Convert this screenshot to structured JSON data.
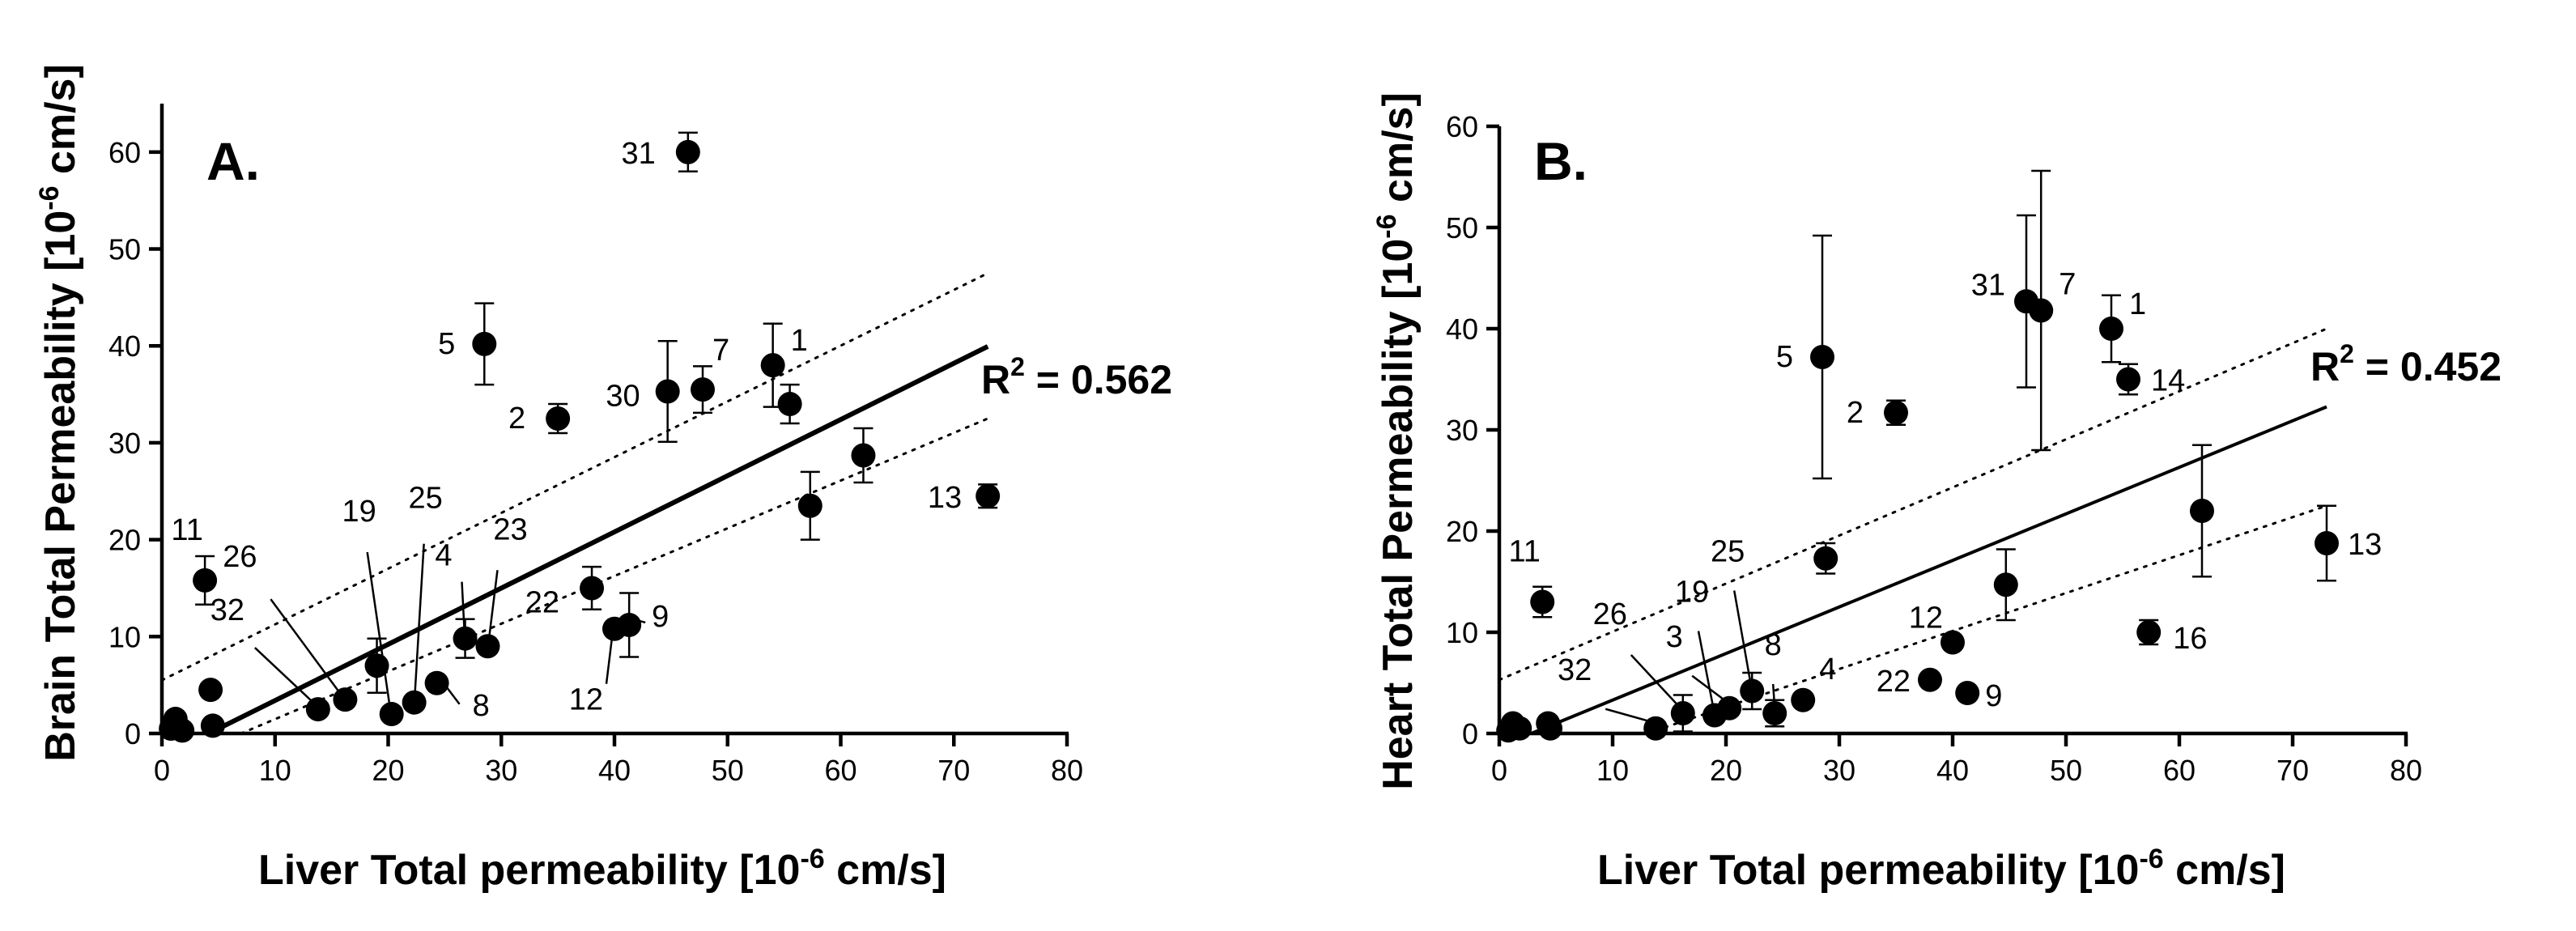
{
  "chart_data": [
    {
      "type": "scatter",
      "panel_label": "A.",
      "xlabel_main": "Liver Total permeability [10",
      "xlabel_exp": "-6",
      "xlabel_end": " cm/s]",
      "ylabel_main": "Brain Total  Permeability [10",
      "ylabel_exp": "-6",
      "ylabel_end": " cm/s]",
      "xlim": [
        0,
        80
      ],
      "ylim": [
        0,
        65
      ],
      "x_ticks": [
        "0",
        "10",
        "20",
        "30",
        "40",
        "50",
        "60",
        "70",
        "80"
      ],
      "y_ticks": [
        "0",
        "10",
        "20",
        "30",
        "40",
        "50",
        "60"
      ],
      "r2_prefix": "R",
      "r2_exp": "2",
      "r2_value": " = 0.562",
      "fit": {
        "slope": 0.58,
        "intercept": -2.4
      },
      "ci_upper": [
        [
          0,
          5.5
        ],
        [
          73,
          47.5
        ]
      ],
      "ci_lower": [
        [
          7,
          0
        ],
        [
          73,
          32.5
        ]
      ],
      "points": [
        {
          "x": 54.0,
          "y": 38.0,
          "err": 4.3,
          "label": "1"
        },
        {
          "x": 35.0,
          "y": 32.5,
          "err": 1.5,
          "label": "2"
        },
        {
          "x": 28.5,
          "y": 40.2,
          "err": 4.2,
          "label": "5"
        },
        {
          "x": 47.8,
          "y": 35.5,
          "err": 2.4,
          "label": "7"
        },
        {
          "x": 3.8,
          "y": 15.8,
          "err": 2.5,
          "label": "11"
        },
        {
          "x": 73.0,
          "y": 24.5,
          "err": 1.2,
          "label": "13"
        },
        {
          "x": 44.7,
          "y": 35.3,
          "err": 5.2,
          "label": "30"
        },
        {
          "x": 46.5,
          "y": 60.0,
          "err": 2.0,
          "label": "31"
        },
        {
          "x": 55.5,
          "y": 34.0,
          "err": 2.0,
          "label": ""
        },
        {
          "x": 62.0,
          "y": 28.7,
          "err": 2.8,
          "label": ""
        },
        {
          "x": 57.3,
          "y": 23.5,
          "err": 3.5,
          "label": ""
        },
        {
          "x": 38.0,
          "y": 15.0,
          "err": 2.2,
          "label": "22"
        },
        {
          "x": 41.3,
          "y": 11.2,
          "err": 3.3,
          "label": "9"
        },
        {
          "x": 40.0,
          "y": 10.8,
          "err": 0,
          "label": "12"
        },
        {
          "x": 19.0,
          "y": 7.0,
          "err": 2.8,
          "label": ""
        },
        {
          "x": 26.8,
          "y": 9.8,
          "err": 2.0,
          "label": "4"
        },
        {
          "x": 28.8,
          "y": 9.0,
          "err": 0,
          "label": "23"
        },
        {
          "x": 24.3,
          "y": 5.2,
          "err": 0,
          "label": "8"
        },
        {
          "x": 22.3,
          "y": 3.2,
          "err": 0,
          "label": "25"
        },
        {
          "x": 20.3,
          "y": 2.0,
          "err": 0,
          "label": "19"
        },
        {
          "x": 16.2,
          "y": 3.5,
          "err": 0,
          "label": "26"
        },
        {
          "x": 13.8,
          "y": 2.5,
          "err": 0,
          "label": "32"
        },
        {
          "x": 4.3,
          "y": 4.5,
          "err": 0,
          "label": ""
        },
        {
          "x": 4.5,
          "y": 0.8,
          "err": 0,
          "label": ""
        },
        {
          "x": 1.2,
          "y": 1.5,
          "err": 0,
          "label": ""
        },
        {
          "x": 0.8,
          "y": 0.5,
          "err": 0,
          "label": ""
        },
        {
          "x": 1.8,
          "y": 0.3,
          "err": 0,
          "label": ""
        }
      ]
    },
    {
      "type": "scatter",
      "panel_label": "B.",
      "xlabel_main": "Liver Total permeability [10",
      "xlabel_exp": "-6",
      "xlabel_end": " cm/s]",
      "ylabel_main": "Heart Total Permeability [10",
      "ylabel_exp": "-6",
      "ylabel_end": " cm/s]",
      "xlim": [
        0,
        80
      ],
      "ylim": [
        0,
        60
      ],
      "x_ticks": [
        "0",
        "10",
        "20",
        "30",
        "40",
        "50",
        "60",
        "70",
        "80"
      ],
      "y_ticks": [
        "0",
        "10",
        "20",
        "30",
        "40",
        "50",
        "60"
      ],
      "r2_prefix": "R",
      "r2_exp": "2",
      "r2_value": " = 0.452",
      "fit": {
        "slope": 0.46,
        "intercept": -1.3
      },
      "ci_upper": [
        [
          0,
          5.3
        ],
        [
          73,
          40
        ]
      ],
      "ci_lower": [
        [
          13,
          0
        ],
        [
          73,
          22.5
        ]
      ],
      "points": [
        {
          "x": 54.0,
          "y": 40.0,
          "err": 3.3,
          "label": "1"
        },
        {
          "x": 35.0,
          "y": 31.7,
          "err": 1.2,
          "label": "2"
        },
        {
          "x": 28.5,
          "y": 37.2,
          "err": 12.0,
          "label": "5"
        },
        {
          "x": 47.8,
          "y": 41.8,
          "err": 13.8,
          "label": "7"
        },
        {
          "x": 3.8,
          "y": 13.0,
          "err": 1.5,
          "label": "11"
        },
        {
          "x": 73.0,
          "y": 18.8,
          "err": 3.7,
          "label": "13"
        },
        {
          "x": 55.5,
          "y": 35.0,
          "err": 1.5,
          "label": "14"
        },
        {
          "x": 57.3,
          "y": 10.0,
          "err": 1.2,
          "label": "16"
        },
        {
          "x": 46.5,
          "y": 42.7,
          "err": 8.5,
          "label": "31"
        },
        {
          "x": 62.0,
          "y": 22.0,
          "err": 6.5,
          "label": ""
        },
        {
          "x": 44.7,
          "y": 14.7,
          "err": 3.5,
          "label": ""
        },
        {
          "x": 28.8,
          "y": 17.3,
          "err": 1.5,
          "label": ""
        },
        {
          "x": 40.0,
          "y": 9.0,
          "err": 0,
          "label": "12"
        },
        {
          "x": 38.0,
          "y": 5.3,
          "err": 0,
          "label": "22"
        },
        {
          "x": 41.3,
          "y": 4.0,
          "err": 0,
          "label": "9"
        },
        {
          "x": 26.8,
          "y": 3.3,
          "err": 0,
          "label": "4"
        },
        {
          "x": 24.3,
          "y": 2.0,
          "err": 1.3,
          "label": "8"
        },
        {
          "x": 22.3,
          "y": 4.2,
          "err": 1.8,
          "label": "25"
        },
        {
          "x": 20.3,
          "y": 2.5,
          "err": 0,
          "label": "3"
        },
        {
          "x": 19.0,
          "y": 1.8,
          "err": 0,
          "label": "19"
        },
        {
          "x": 16.2,
          "y": 2.0,
          "err": 1.8,
          "label": "26"
        },
        {
          "x": 13.8,
          "y": 0.5,
          "err": 0,
          "label": "32"
        },
        {
          "x": 4.3,
          "y": 1.0,
          "err": 0,
          "label": ""
        },
        {
          "x": 4.5,
          "y": 0.5,
          "err": 0,
          "label": ""
        },
        {
          "x": 1.2,
          "y": 1.0,
          "err": 0,
          "label": ""
        },
        {
          "x": 0.8,
          "y": 0.3,
          "err": 0,
          "label": ""
        },
        {
          "x": 1.8,
          "y": 0.5,
          "err": 0,
          "label": ""
        }
      ]
    }
  ]
}
